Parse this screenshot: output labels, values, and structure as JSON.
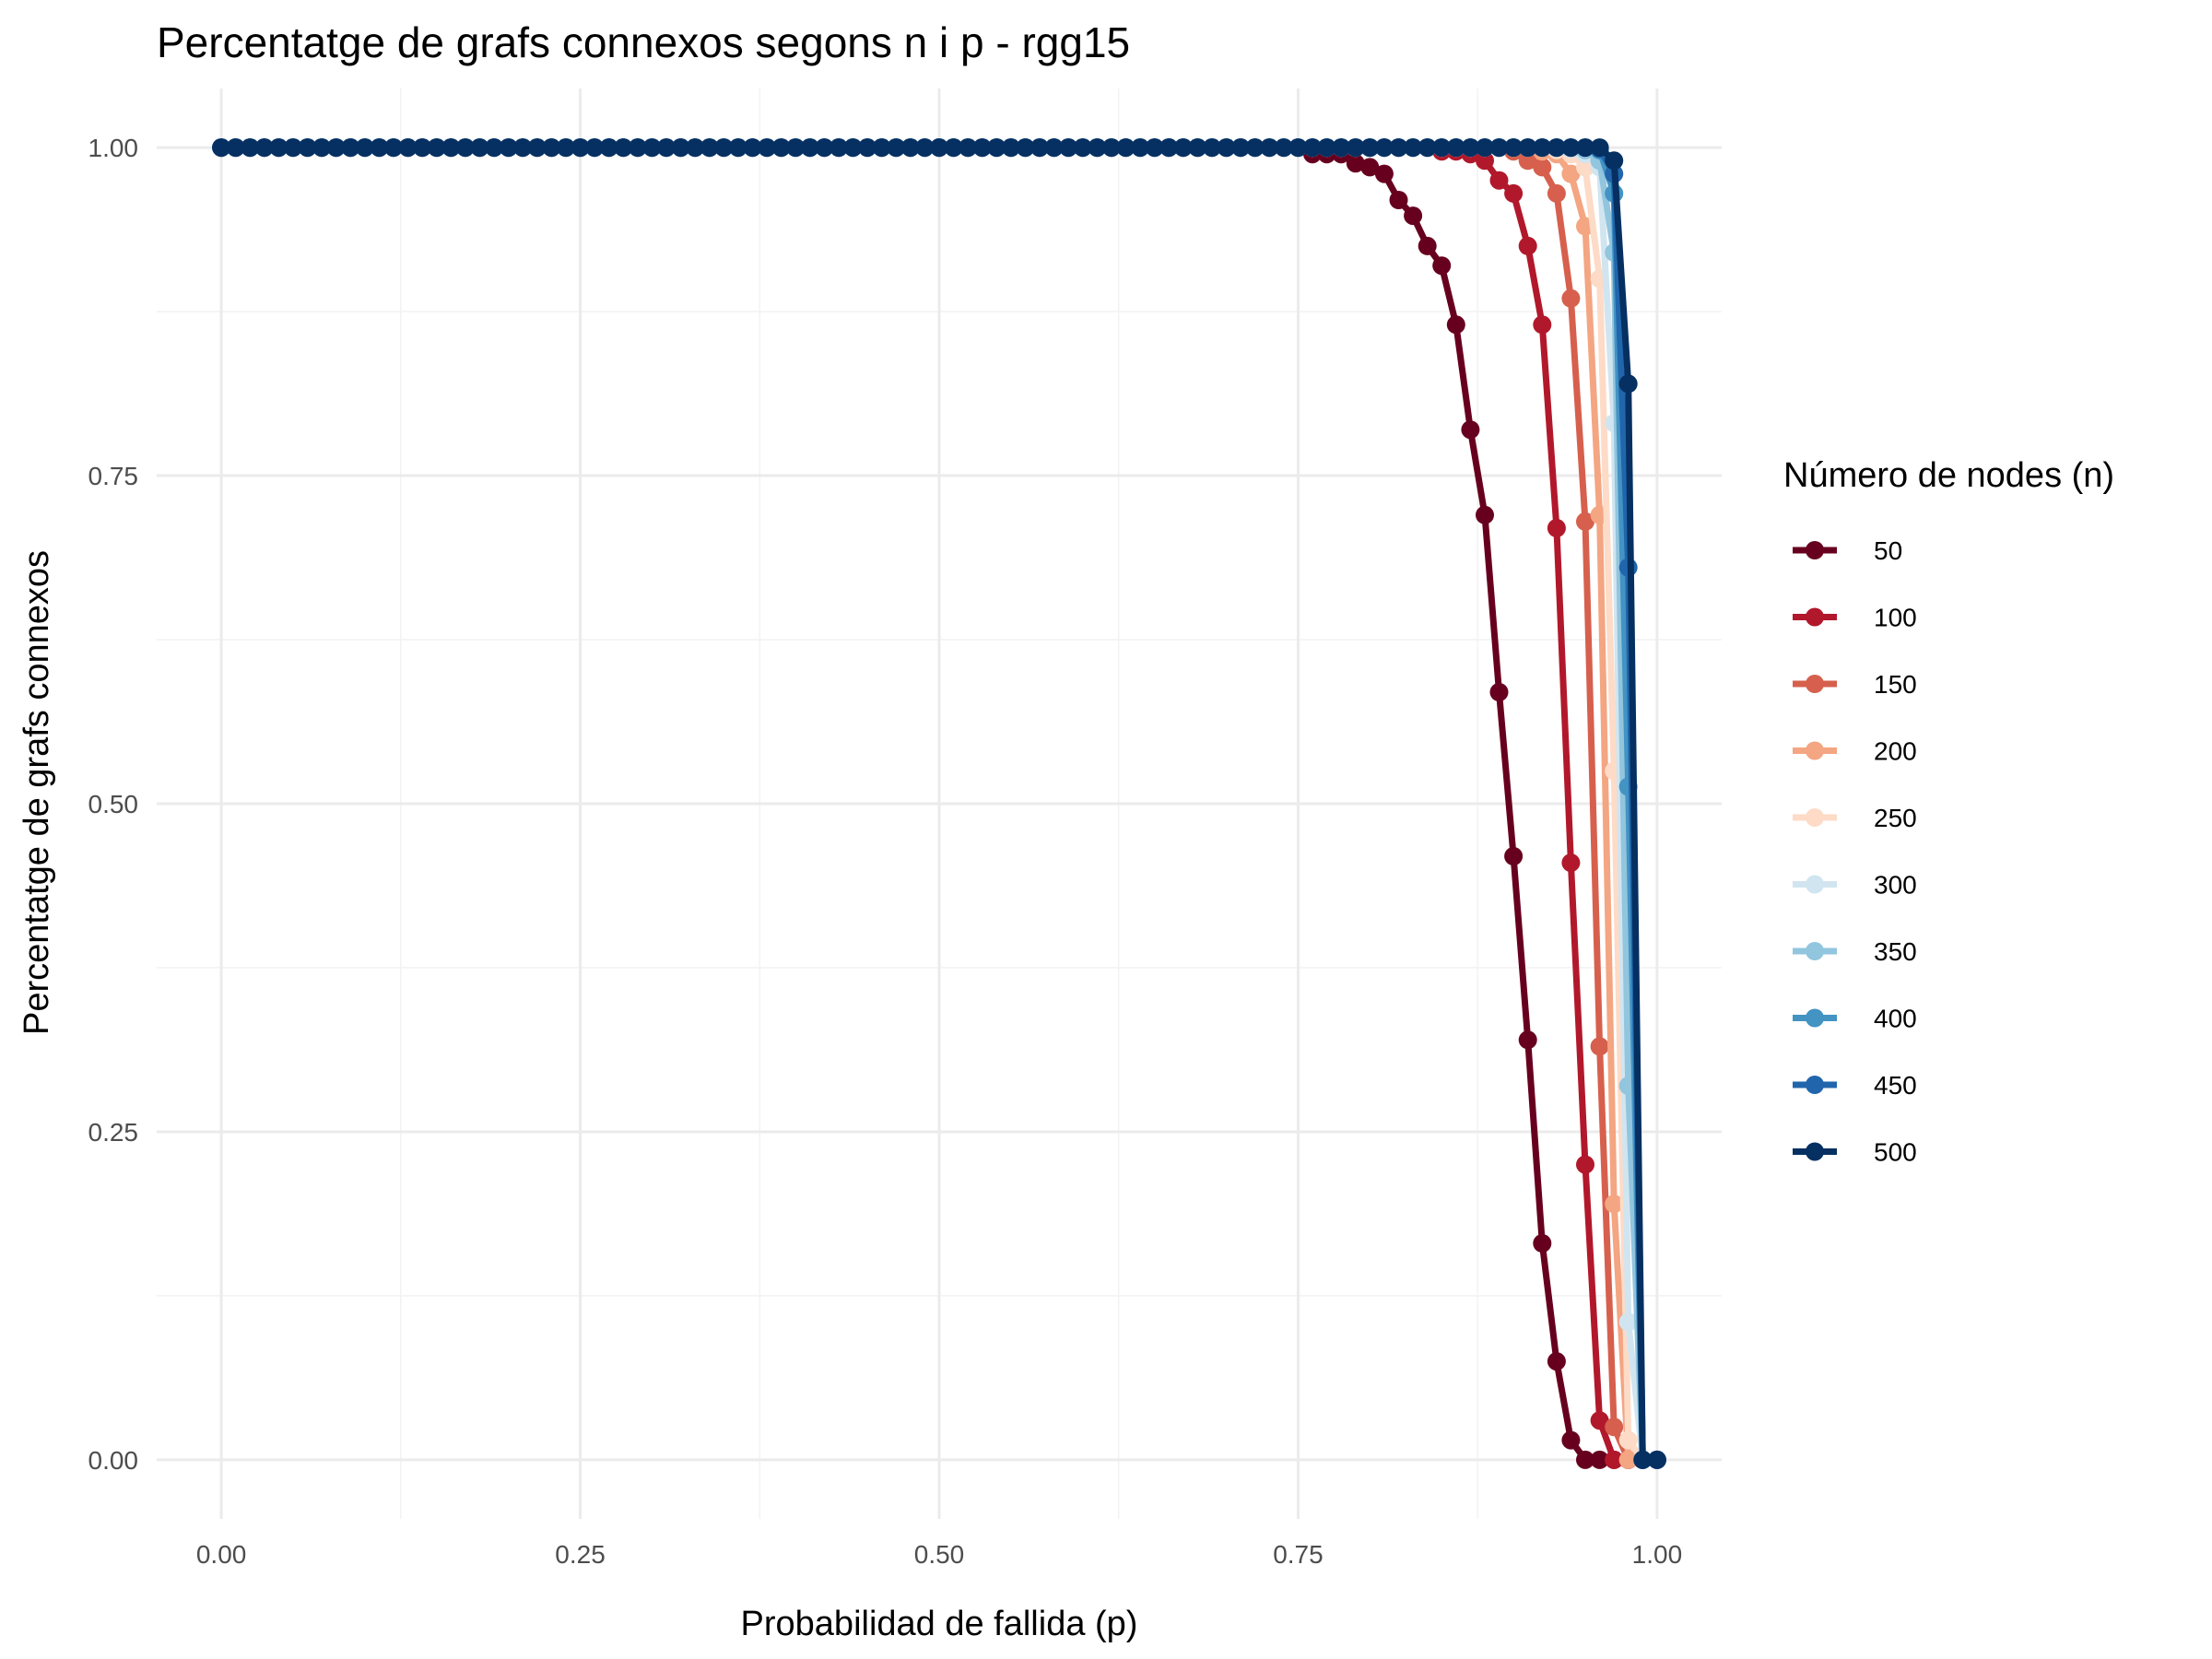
{
  "chart_data": {
    "type": "line",
    "title": "Percentatge de grafs connexos segons n i p - rgg15",
    "xlabel": "Probabilidad de fallida (p)",
    "ylabel": "Percentatge de grafs connexos",
    "xlim": [
      -0.045,
      1.045
    ],
    "ylim": [
      -0.045,
      1.045
    ],
    "x_ticks": [
      "0.00",
      "0.25",
      "0.50",
      "0.75",
      "1.00"
    ],
    "y_ticks": [
      "0.00",
      "0.25",
      "0.50",
      "0.75",
      "1.00"
    ],
    "grid": true,
    "legend": {
      "title": "Número de nodes (n)",
      "position": "right"
    },
    "x": [
      0.0,
      0.01,
      0.02,
      0.03,
      0.04,
      0.05,
      0.06,
      0.07,
      0.08,
      0.09,
      0.1,
      0.11,
      0.12,
      0.13,
      0.14,
      0.15,
      0.16,
      0.17,
      0.18,
      0.19,
      0.2,
      0.21,
      0.22,
      0.23,
      0.24,
      0.25,
      0.26,
      0.27,
      0.28,
      0.29,
      0.3,
      0.31,
      0.32,
      0.33,
      0.34,
      0.35,
      0.36,
      0.37,
      0.38,
      0.39,
      0.4,
      0.41,
      0.42,
      0.43,
      0.44,
      0.45,
      0.46,
      0.47,
      0.48,
      0.49,
      0.5,
      0.51,
      0.52,
      0.53,
      0.54,
      0.55,
      0.56,
      0.57,
      0.58,
      0.59,
      0.6,
      0.61,
      0.62,
      0.63,
      0.64,
      0.65,
      0.66,
      0.67,
      0.68,
      0.69,
      0.7,
      0.71,
      0.72,
      0.73,
      0.74,
      0.75,
      0.76,
      0.77,
      0.78,
      0.79,
      0.8,
      0.81,
      0.82,
      0.83,
      0.84,
      0.85,
      0.86,
      0.87,
      0.88,
      0.89,
      0.9,
      0.91,
      0.92,
      0.93,
      0.94,
      0.95,
      0.96,
      0.97,
      0.98,
      0.99,
      1.0
    ],
    "series": [
      {
        "name": "50",
        "color": "#67001f",
        "tail": [
          [
            0.76,
            0.995
          ],
          [
            0.77,
            0.995
          ],
          [
            0.78,
            0.995
          ],
          [
            0.79,
            0.988
          ],
          [
            0.8,
            0.985
          ],
          [
            0.81,
            0.98
          ],
          [
            0.82,
            0.96
          ],
          [
            0.83,
            0.948
          ],
          [
            0.84,
            0.925
          ],
          [
            0.85,
            0.91
          ],
          [
            0.86,
            0.865
          ],
          [
            0.87,
            0.785
          ],
          [
            0.88,
            0.72
          ],
          [
            0.89,
            0.585
          ],
          [
            0.9,
            0.46
          ],
          [
            0.91,
            0.32
          ],
          [
            0.92,
            0.165
          ],
          [
            0.93,
            0.075
          ],
          [
            0.94,
            0.015
          ],
          [
            0.95,
            0.0
          ],
          [
            0.96,
            0.0
          ],
          [
            0.97,
            0.0
          ],
          [
            0.98,
            0.0
          ],
          [
            0.99,
            0.0
          ],
          [
            1.0,
            0.0
          ]
        ]
      },
      {
        "name": "100",
        "color": "#b2182b",
        "tail": [
          [
            0.85,
            0.997
          ],
          [
            0.86,
            0.997
          ],
          [
            0.87,
            0.995
          ],
          [
            0.88,
            0.99
          ],
          [
            0.89,
            0.975
          ],
          [
            0.9,
            0.965
          ],
          [
            0.91,
            0.925
          ],
          [
            0.92,
            0.865
          ],
          [
            0.93,
            0.71
          ],
          [
            0.94,
            0.455
          ],
          [
            0.95,
            0.225
          ],
          [
            0.96,
            0.03
          ],
          [
            0.97,
            0.0
          ],
          [
            0.98,
            0.0
          ],
          [
            0.99,
            0.0
          ],
          [
            1.0,
            0.0
          ]
        ]
      },
      {
        "name": "150",
        "color": "#d6604d",
        "tail": [
          [
            0.9,
            0.997
          ],
          [
            0.91,
            0.99
          ],
          [
            0.92,
            0.985
          ],
          [
            0.93,
            0.965
          ],
          [
            0.94,
            0.885
          ],
          [
            0.95,
            0.715
          ],
          [
            0.96,
            0.315
          ],
          [
            0.97,
            0.025
          ],
          [
            0.98,
            0.0
          ],
          [
            0.99,
            0.0
          ],
          [
            1.0,
            0.0
          ]
        ]
      },
      {
        "name": "200",
        "color": "#f4a582",
        "tail": [
          [
            0.92,
            0.997
          ],
          [
            0.93,
            0.995
          ],
          [
            0.94,
            0.98
          ],
          [
            0.95,
            0.94
          ],
          [
            0.96,
            0.72
          ],
          [
            0.97,
            0.195
          ],
          [
            0.98,
            0.0
          ],
          [
            0.99,
            0.0
          ],
          [
            1.0,
            0.0
          ]
        ]
      },
      {
        "name": "250",
        "color": "#fddbc7",
        "tail": [
          [
            0.93,
            0.998
          ],
          [
            0.94,
            0.995
          ],
          [
            0.95,
            0.985
          ],
          [
            0.96,
            0.9
          ],
          [
            0.97,
            0.525
          ],
          [
            0.98,
            0.015
          ],
          [
            0.99,
            0.0
          ],
          [
            1.0,
            0.0
          ]
        ]
      },
      {
        "name": "300",
        "color": "#d1e5f0",
        "tail": [
          [
            0.94,
            0.999
          ],
          [
            0.95,
            0.995
          ],
          [
            0.96,
            0.985
          ],
          [
            0.97,
            0.79
          ],
          [
            0.98,
            0.105
          ],
          [
            0.99,
            0.0
          ],
          [
            1.0,
            0.0
          ]
        ]
      },
      {
        "name": "350",
        "color": "#92c5de",
        "tail": [
          [
            0.95,
            0.998
          ],
          [
            0.96,
            0.99
          ],
          [
            0.97,
            0.92
          ],
          [
            0.98,
            0.285
          ],
          [
            0.99,
            0.0
          ],
          [
            1.0,
            0.0
          ]
        ]
      },
      {
        "name": "400",
        "color": "#4393c3",
        "tail": [
          [
            0.96,
            0.998
          ],
          [
            0.97,
            0.965
          ],
          [
            0.98,
            0.513
          ],
          [
            0.99,
            0.0
          ],
          [
            1.0,
            0.0
          ]
        ]
      },
      {
        "name": "450",
        "color": "#2166ac",
        "tail": [
          [
            0.96,
            0.999
          ],
          [
            0.97,
            0.98
          ],
          [
            0.98,
            0.68
          ],
          [
            0.99,
            0.0
          ],
          [
            1.0,
            0.0
          ]
        ]
      },
      {
        "name": "500",
        "color": "#053061",
        "tail": [
          [
            0.97,
            0.99
          ],
          [
            0.98,
            0.82
          ],
          [
            0.99,
            0.0
          ],
          [
            1.0,
            0.0
          ]
        ]
      }
    ]
  }
}
